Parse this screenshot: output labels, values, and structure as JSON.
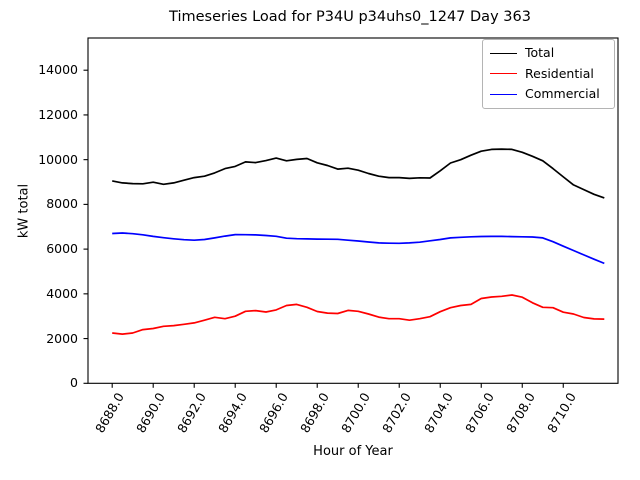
{
  "chart_data": {
    "type": "line",
    "title": "Timeseries Load for P34U p34uhs0_1247  Day 363",
    "xlabel": "Hour of Year",
    "ylabel": "kW total",
    "grid": false,
    "legend_position": "upper right",
    "xlim": [
      8686.82,
      8712.67
    ],
    "ylim": [
      0,
      15440
    ],
    "x_tick_values": [
      8688,
      8690,
      8692,
      8694,
      8696,
      8698,
      8700,
      8702,
      8704,
      8706,
      8708,
      8710
    ],
    "x_tick_labels": [
      "8688.0",
      "8690.0",
      "8692.0",
      "8694.0",
      "8696.0",
      "8698.0",
      "8700.0",
      "8702.0",
      "8704.0",
      "8706.0",
      "8708.0",
      "8710.0"
    ],
    "y_tick_values": [
      0,
      2000,
      4000,
      6000,
      8000,
      10000,
      12000,
      14000
    ],
    "y_tick_labels": [
      "0",
      "2000",
      "4000",
      "6000",
      "8000",
      "10000",
      "12000",
      "14000"
    ],
    "x": [
      8688.0,
      8688.5,
      8689.0,
      8689.5,
      8690.0,
      8690.5,
      8691.0,
      8691.5,
      8692.0,
      8692.5,
      8693.0,
      8693.5,
      8694.0,
      8694.5,
      8695.0,
      8695.5,
      8696.0,
      8696.5,
      8697.0,
      8697.5,
      8698.0,
      8698.5,
      8699.0,
      8699.5,
      8700.0,
      8700.5,
      8701.0,
      8701.5,
      8702.0,
      8702.5,
      8703.0,
      8703.5,
      8704.0,
      8704.5,
      8705.0,
      8705.5,
      8706.0,
      8706.5,
      8707.0,
      8707.5,
      8708.0,
      8708.5,
      8709.0,
      8709.5,
      8710.0,
      8710.5,
      8711.0,
      8711.5,
      8712.0
    ],
    "series": [
      {
        "name": "Total",
        "color": "#000000",
        "values": [
          9050,
          8960,
          8930,
          8920,
          8990,
          8900,
          8960,
          9080,
          9200,
          9260,
          9410,
          9600,
          9700,
          9900,
          9870,
          9960,
          10070,
          9950,
          10010,
          10050,
          9860,
          9740,
          9580,
          9620,
          9530,
          9380,
          9260,
          9200,
          9200,
          9160,
          9190,
          9180,
          9500,
          9850,
          10000,
          10200,
          10380,
          10460,
          10470,
          10460,
          10330,
          10150,
          9950,
          9600,
          9230,
          8870,
          8660,
          8450,
          8290
        ]
      },
      {
        "name": "Residential",
        "color": "#ff0000",
        "values": [
          2250,
          2200,
          2250,
          2400,
          2450,
          2550,
          2580,
          2640,
          2700,
          2820,
          2950,
          2890,
          3000,
          3220,
          3250,
          3190,
          3280,
          3480,
          3530,
          3400,
          3210,
          3140,
          3120,
          3260,
          3220,
          3100,
          2960,
          2890,
          2890,
          2820,
          2890,
          2980,
          3200,
          3380,
          3480,
          3530,
          3790,
          3860,
          3890,
          3950,
          3850,
          3600,
          3400,
          3380,
          3180,
          3100,
          2940,
          2880,
          2870
        ]
      },
      {
        "name": "Commercial",
        "color": "#0000ff",
        "values": [
          6700,
          6720,
          6690,
          6640,
          6570,
          6510,
          6460,
          6420,
          6400,
          6430,
          6500,
          6580,
          6650,
          6645,
          6635,
          6610,
          6575,
          6490,
          6465,
          6455,
          6450,
          6445,
          6440,
          6400,
          6365,
          6320,
          6280,
          6265,
          6260,
          6280,
          6310,
          6370,
          6430,
          6500,
          6530,
          6550,
          6565,
          6570,
          6570,
          6560,
          6550,
          6540,
          6500,
          6330,
          6130,
          5940,
          5740,
          5550,
          5360
        ]
      }
    ]
  }
}
